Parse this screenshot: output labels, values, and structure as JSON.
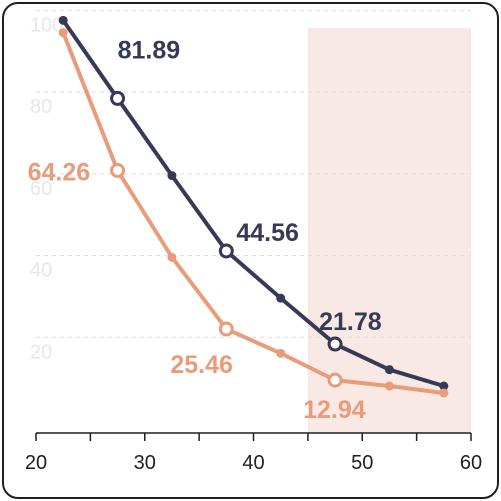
{
  "chart_data": {
    "type": "line",
    "title": "",
    "xlabel": "",
    "ylabel": "",
    "xlim": [
      20,
      60
    ],
    "ylim": [
      0,
      105
    ],
    "x_ticks": [
      20,
      30,
      40,
      50,
      60
    ],
    "y_ticks": [
      20,
      40,
      60,
      80,
      100
    ],
    "grid": "horizontal dashed",
    "highlight_band": {
      "x_from": 45,
      "x_to": 60,
      "color": "#f8e9e4"
    },
    "series": [
      {
        "color": "#363a57",
        "x": [
          22.5,
          27.5,
          32.5,
          37.5,
          42.5,
          47.5,
          52.5,
          57.5
        ],
        "y": [
          101,
          81.89,
          63,
          44.56,
          33,
          21.78,
          15.5,
          11.5
        ],
        "hollow_indices": [
          1,
          3,
          5
        ],
        "labels": [
          {
            "index": 1,
            "text": "81.89"
          },
          {
            "index": 3,
            "text": "44.56"
          },
          {
            "index": 5,
            "text": "21.78"
          }
        ]
      },
      {
        "color": "#e89c7a",
        "x": [
          22.5,
          27.5,
          32.5,
          37.5,
          42.5,
          47.5,
          52.5,
          57.5
        ],
        "y": [
          98,
          64.26,
          43,
          25.46,
          19.5,
          12.94,
          11.5,
          9.8
        ],
        "hollow_indices": [
          1,
          3,
          5
        ],
        "labels": [
          {
            "index": 1,
            "text": "64.26"
          },
          {
            "index": 3,
            "text": "25.46"
          },
          {
            "index": 5,
            "text": "12.94"
          }
        ]
      }
    ]
  }
}
